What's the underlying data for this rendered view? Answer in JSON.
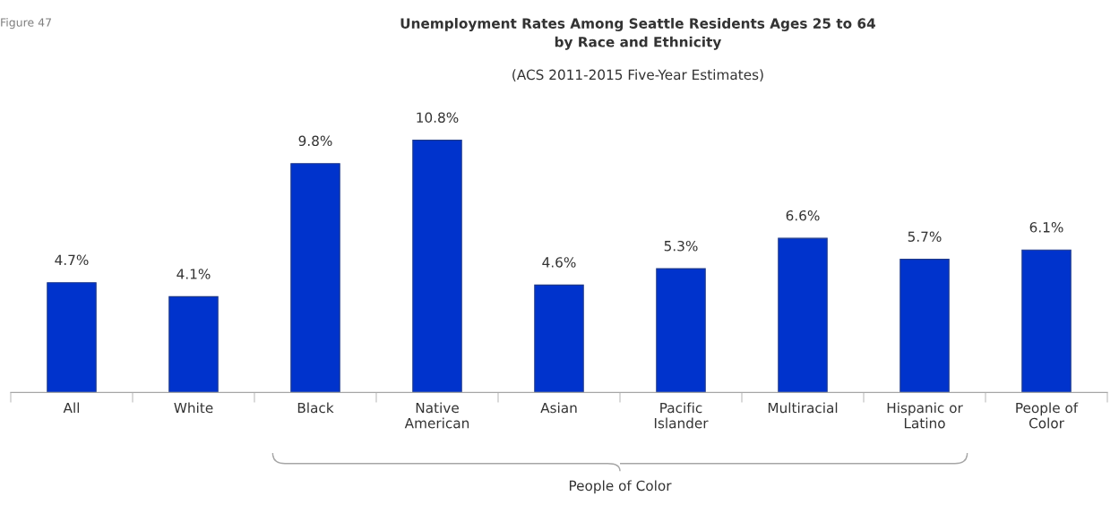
{
  "chart_data": {
    "type": "bar",
    "title": "Unemployment Rates Among Seattle Residents Ages 25 to 64\nby Race and Ethnicity",
    "subtitle": "(ACS 2011-2015 Five-Year Estimates)",
    "categories": [
      "All",
      "White",
      "Black",
      "Native\nAmerican",
      "Asian",
      "Pacific\nIslander",
      "Multiracial",
      "Hispanic or\nLatino",
      "People of\nColor"
    ],
    "values": [
      4.7,
      4.1,
      9.8,
      10.8,
      4.6,
      5.3,
      6.6,
      5.7,
      6.1
    ],
    "value_labels": [
      "4.7%",
      "4.1%",
      "9.8%",
      "10.8%",
      "4.6%",
      "5.3%",
      "6.6%",
      "5.7%",
      "6.1%"
    ],
    "color": "#0033cc",
    "annotations": [
      "Figure 47",
      "People of Color"
    ],
    "grid": false,
    "legend": false
  }
}
